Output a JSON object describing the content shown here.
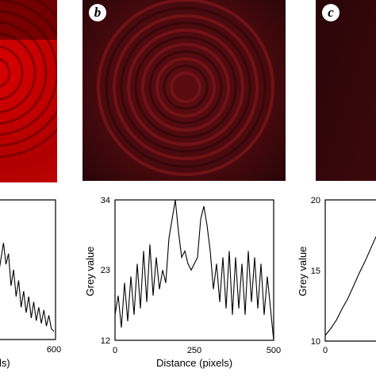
{
  "panels": [
    {
      "letter": "",
      "visible": "cropped-left"
    },
    {
      "letter": "b"
    },
    {
      "letter": "c"
    }
  ],
  "chart_data": [
    {
      "type": "line",
      "panel": "a",
      "xlabel": "ls)",
      "ylabel": "",
      "xlim": [
        null,
        600
      ],
      "x_ticks": [
        "600"
      ],
      "x": [
        380,
        400,
        410,
        420,
        430,
        440,
        450,
        460,
        470,
        480,
        490,
        500,
        510,
        520,
        530,
        540,
        550,
        560,
        570,
        580,
        590,
        600
      ],
      "y": [
        20,
        26,
        22,
        24,
        18,
        21,
        16,
        19,
        14,
        17,
        13,
        16,
        12,
        15,
        11.5,
        14,
        11,
        13.5,
        10.5,
        12.5,
        10,
        9.5
      ]
    },
    {
      "type": "line",
      "panel": "b",
      "xlabel": "Distance (pixels)",
      "ylabel": "Grey value",
      "xlim": [
        0,
        500
      ],
      "ylim": [
        12,
        34
      ],
      "x_ticks": [
        "0",
        "250",
        "500"
      ],
      "y_ticks": [
        "12",
        "23",
        "34"
      ],
      "x": [
        0,
        10,
        20,
        30,
        40,
        50,
        60,
        70,
        80,
        90,
        100,
        110,
        120,
        130,
        140,
        150,
        160,
        170,
        180,
        190,
        200,
        210,
        220,
        230,
        240,
        250,
        260,
        270,
        280,
        290,
        300,
        310,
        320,
        330,
        340,
        350,
        360,
        370,
        380,
        390,
        400,
        410,
        420,
        430,
        440,
        450,
        460,
        470,
        480,
        490,
        500
      ],
      "y": [
        16,
        19,
        14,
        21,
        15,
        22,
        16,
        24,
        17,
        26,
        18,
        27,
        19,
        25,
        20,
        23,
        21,
        28,
        31,
        34,
        29,
        25,
        26,
        24,
        23,
        24,
        25,
        31,
        33,
        30,
        26,
        20,
        24,
        18,
        25,
        17,
        26,
        16,
        25,
        17,
        24,
        16,
        26,
        18,
        25,
        17,
        24,
        16,
        22,
        17,
        12
      ]
    },
    {
      "type": "line",
      "panel": "c",
      "xlabel": "",
      "ylabel": "Grey value",
      "ylim": [
        10,
        20
      ],
      "x_ticks": [
        "0"
      ],
      "y_ticks": [
        "10",
        "15",
        "20"
      ],
      "x": [
        0,
        10,
        20,
        30,
        40,
        50,
        60,
        70,
        80,
        90
      ],
      "y": [
        10.4,
        10.9,
        11.5,
        12.3,
        13.0,
        13.9,
        14.8,
        15.6,
        16.5,
        17.4
      ]
    }
  ]
}
